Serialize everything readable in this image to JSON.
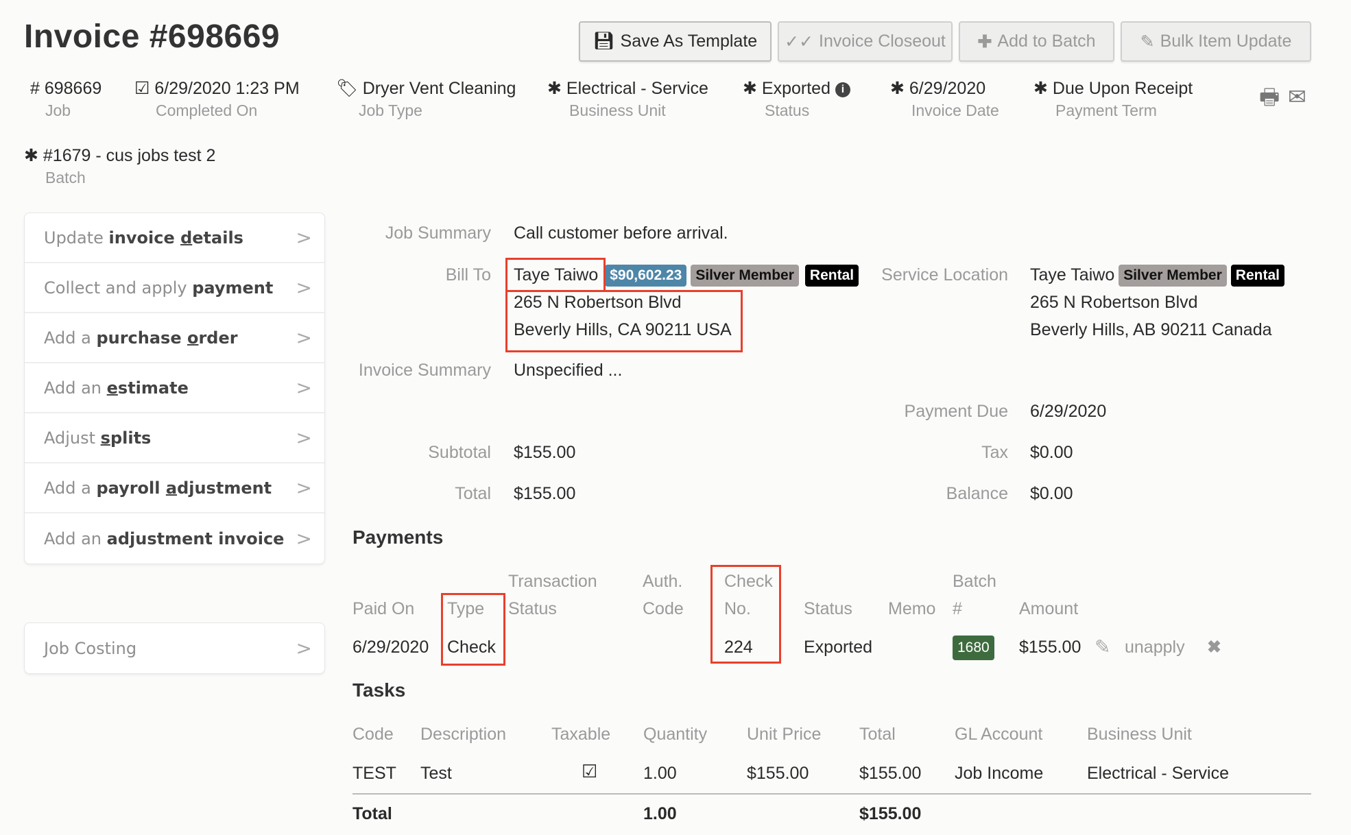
{
  "header": {
    "title": "Invoice #698669",
    "buttons": {
      "save_template": "Save As Template",
      "invoice_closeout": "Invoice Closeout",
      "add_to_batch": "Add to Batch",
      "bulk_item_update": "Bulk Item Update"
    }
  },
  "meta": {
    "job": {
      "value": "# 698669",
      "label": "Job"
    },
    "completed_on": {
      "value": "6/29/2020 1:23 PM",
      "label": "Completed On"
    },
    "job_type": {
      "value": "Dryer Vent Cleaning",
      "label": "Job Type"
    },
    "business_unit": {
      "value": "Electrical - Service",
      "label": "Business Unit"
    },
    "status": {
      "value": "Exported",
      "label": "Status"
    },
    "invoice_date": {
      "value": "6/29/2020",
      "label": "Invoice Date"
    },
    "payment_term": {
      "value": "Due Upon Receipt",
      "label": "Payment Term"
    },
    "batch": {
      "value": "#1679 - cus jobs test 2",
      "label": "Batch"
    }
  },
  "sidebar": {
    "items": [
      {
        "pre": "Update ",
        "bold": "invoice ",
        "ul": "d",
        "post": "etails"
      },
      {
        "pre": "Collect and apply ",
        "bold": "payment",
        "ul": "",
        "post": ""
      },
      {
        "pre": "Add a ",
        "bold": "purchase ",
        "ul": "o",
        "post": "rder"
      },
      {
        "pre": "Add an ",
        "bold": "",
        "ul": "e",
        "post": "stimate"
      },
      {
        "pre": "Adjust ",
        "bold": "",
        "ul": "s",
        "post": "plits"
      },
      {
        "pre": "Add a ",
        "bold": "payroll ",
        "ul": "a",
        "post": "djustment"
      },
      {
        "pre": "Add an ",
        "bold": "adjustment invoice",
        "ul": "",
        "post": ""
      }
    ],
    "job_costing": "Job Costing"
  },
  "details": {
    "job_summary_label": "Job Summary",
    "job_summary": "Call customer before arrival.",
    "bill_to_label": "Bill To",
    "bill_to": {
      "name": "Taye Taiwo",
      "balance_badge": "$90,602.23",
      "member_badge": "Silver Member",
      "rental_badge": "Rental",
      "address1": "265 N Robertson Blvd",
      "address2": "Beverly Hills, CA 90211 USA"
    },
    "service_location_label": "Service Location",
    "service_location": {
      "name": "Taye Taiwo",
      "member_badge": "Silver Member",
      "rental_badge": "Rental",
      "address1": "265 N Robertson Blvd",
      "address2": "Beverly Hills, AB 90211 Canada"
    },
    "invoice_summary_label": "Invoice Summary",
    "invoice_summary": "Unspecified ...",
    "payment_due_label": "Payment Due",
    "payment_due": "6/29/2020",
    "subtotal_label": "Subtotal",
    "subtotal": "$155.00",
    "tax_label": "Tax",
    "tax": "$0.00",
    "total_label": "Total",
    "total": "$155.00",
    "balance_label": "Balance",
    "balance": "$0.00"
  },
  "payments": {
    "heading": "Payments",
    "headers": {
      "paid_on": "Paid On",
      "type": "Type",
      "txn1": "Transaction",
      "txn2": "Status",
      "auth1": "Auth.",
      "auth2": "Code",
      "check1": "Check",
      "check2": "No.",
      "status": "Status",
      "memo": "Memo",
      "batch1": "Batch",
      "batch2": "#",
      "amount": "Amount"
    },
    "rows": [
      {
        "paid_on": "6/29/2020",
        "type": "Check",
        "check_no": "224",
        "status": "Exported",
        "batch": "1680",
        "amount": "$155.00",
        "unapply": "unapply"
      }
    ]
  },
  "tasks": {
    "heading": "Tasks",
    "headers": [
      "Code",
      "Description",
      "Taxable",
      "Quantity",
      "Unit Price",
      "Total",
      "GL Account",
      "Business Unit"
    ],
    "rows": [
      {
        "code": "TEST",
        "description": "Test",
        "taxable": true,
        "quantity": "1.00",
        "unit_price": "$155.00",
        "total": "$155.00",
        "gl_account": "Job Income",
        "business_unit": "Electrical - Service"
      }
    ],
    "footer": {
      "label": "Total",
      "quantity": "1.00",
      "total": "$155.00"
    }
  },
  "colors": {
    "balance_badge": "#4e86a8",
    "member_badge": "#a39d9b",
    "rental_badge": "#000000",
    "batch_badge": "#3e6b3e",
    "highlight": "#e8402b"
  }
}
